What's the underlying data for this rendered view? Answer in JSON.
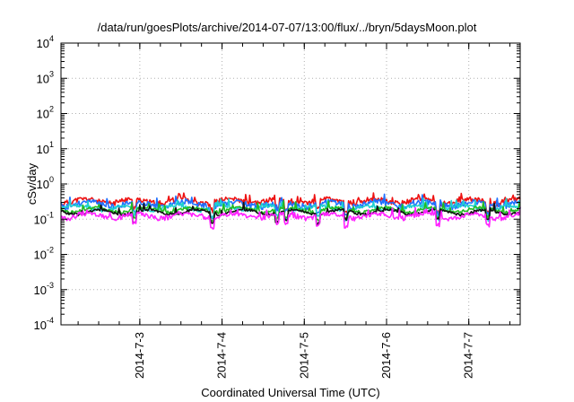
{
  "chart_data": {
    "type": "line",
    "title": "/data/run/goesPlots/archive/2014-07-07/13:00/flux/../bryn/5daysMoon.plot",
    "xlabel": "Coordinated Universal Time (UTC)",
    "ylabel": "cSv/day",
    "yscale": "log",
    "ylim": [
      0.0001,
      10000
    ],
    "y_ticks": [
      {
        "value": 0.0001,
        "base": "10",
        "exp": "-4"
      },
      {
        "value": 0.001,
        "base": "10",
        "exp": "-3"
      },
      {
        "value": 0.01,
        "base": "10",
        "exp": "-2"
      },
      {
        "value": 0.1,
        "base": "10",
        "exp": "-1"
      },
      {
        "value": 1,
        "base": "10",
        "exp": "0"
      },
      {
        "value": 10,
        "base": "10",
        "exp": "1"
      },
      {
        "value": 100,
        "base": "10",
        "exp": "2"
      },
      {
        "value": 1000,
        "base": "10",
        "exp": "3"
      },
      {
        "value": 10000,
        "base": "10",
        "exp": "4"
      }
    ],
    "xlim": [
      "2014-07-02T01:00",
      "2014-07-07T15:00"
    ],
    "x_ticks": [
      {
        "value": "2014-07-03T00:00",
        "label": "2014-7-3"
      },
      {
        "value": "2014-07-04T00:00",
        "label": "2014-7-4"
      },
      {
        "value": "2014-07-05T00:00",
        "label": "2014-7-5"
      },
      {
        "value": "2014-07-06T00:00",
        "label": "2014-7-6"
      },
      {
        "value": "2014-07-07T00:00",
        "label": "2014-7-7"
      }
    ],
    "grid": true,
    "series": [
      {
        "color": "#ee1111",
        "level": 0.33,
        "amp": 0.08,
        "seed": 11
      },
      {
        "color": "#1f6fff",
        "level": 0.27,
        "amp": 0.09,
        "seed": 23
      },
      {
        "color": "#1fd0d0",
        "level": 0.21,
        "amp": 0.06,
        "seed": 37
      },
      {
        "color": "#22bb22",
        "level": 0.185,
        "amp": 0.05,
        "seed": 41
      },
      {
        "color": "#111111",
        "level": 0.16,
        "amp": 0.04,
        "seed": 53
      },
      {
        "color": "#ff22ff",
        "level": 0.125,
        "amp": 0.07,
        "seed": 67
      }
    ]
  }
}
